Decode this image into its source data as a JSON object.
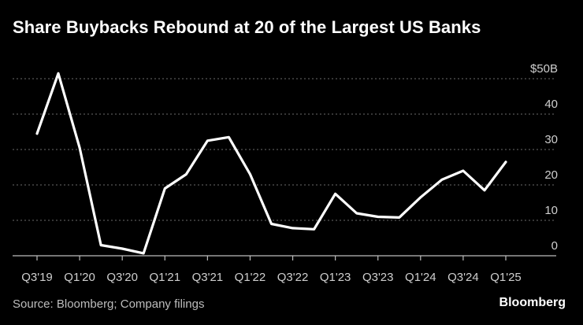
{
  "chart_data": {
    "type": "line",
    "title": "Share Buybacks Rebound at 20 of the Largest US Banks",
    "xlabel": "",
    "ylabel": "",
    "y_unit_prefix": "$",
    "y_unit_suffix": "B",
    "ylim": [
      0,
      50
    ],
    "yticks": [
      0,
      10,
      20,
      30,
      40,
      50
    ],
    "y_axis_side": "right",
    "grid": true,
    "legend": "none",
    "line_color": "#ffffff",
    "x": [
      "Q3'19",
      "Q4'19",
      "Q1'20",
      "Q2'20",
      "Q3'20",
      "Q4'20",
      "Q1'21",
      "Q2'21",
      "Q3'21",
      "Q4'21",
      "Q1'22",
      "Q2'22",
      "Q3'22",
      "Q4'22",
      "Q1'23",
      "Q2'23",
      "Q3'23",
      "Q4'23",
      "Q1'24",
      "Q2'24",
      "Q3'24",
      "Q4'24",
      "Q1'25"
    ],
    "x_tick_labels": [
      "Q3'19",
      "Q1'20",
      "Q3'20",
      "Q1'21",
      "Q3'21",
      "Q1'22",
      "Q3'22",
      "Q1'23",
      "Q3'23",
      "Q1'24",
      "Q3'24",
      "Q1'25"
    ],
    "series": [
      {
        "values": [
          34.5,
          51.5,
          30.5,
          3,
          2,
          0.7,
          19,
          23,
          32.5,
          33.5,
          23,
          9,
          7.8,
          7.5,
          17.5,
          12,
          11,
          10.8,
          16.5,
          21.5,
          24,
          18.5,
          26.5
        ]
      }
    ]
  },
  "footer": {
    "source": "Source: Bloomberg; Company filings",
    "brand": "Bloomberg"
  }
}
